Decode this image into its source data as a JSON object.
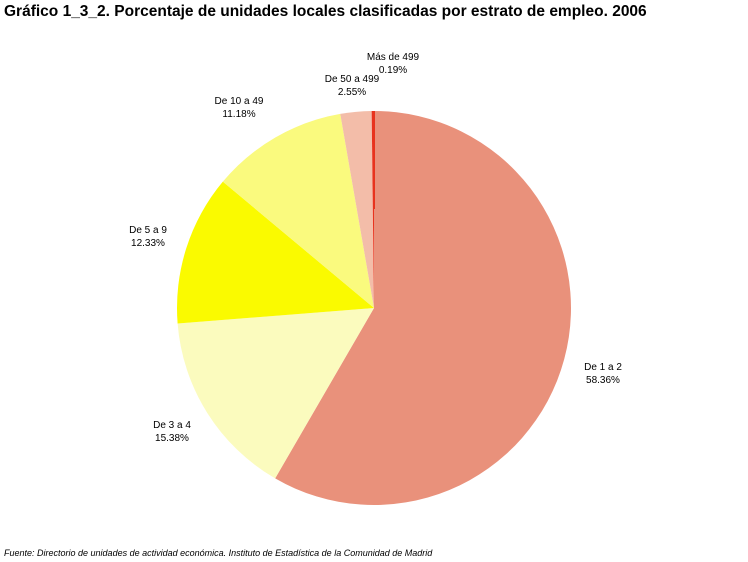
{
  "title": "Gráfico 1_3_2. Porcentaje de unidades locales clasificadas por estrato de empleo. 2006",
  "source": "Fuente: Directorio de unidades de actividad económica. Instituto de Estadística de la Comunidad de Madrid",
  "chart_data": {
    "type": "pie",
    "title": "Gráfico 1_3_2. Porcentaje de unidades locales clasificadas por estrato de empleo. 2006",
    "start": "12 o'clock",
    "direction": "clockwise",
    "slices": [
      {
        "label": "De 1 a 2",
        "value": 58.36,
        "value_label": "58.36%",
        "color": "#E9917B"
      },
      {
        "label": "De 3 a 4",
        "value": 15.38,
        "value_label": "15.38%",
        "color": "#FBFBBE"
      },
      {
        "label": "De 5 a 9",
        "value": 12.33,
        "value_label": "12.33%",
        "color": "#FAFA00"
      },
      {
        "label": "De 10 a 49",
        "value": 11.18,
        "value_label": "11.18%",
        "color": "#FAFA7E"
      },
      {
        "label": "De 50 a 499",
        "value": 2.55,
        "value_label": "2.55%",
        "color": "#F3BDA9"
      },
      {
        "label": "Más de 499",
        "value": 0.19,
        "value_label": "0.19%",
        "color": "#E8331E"
      }
    ]
  }
}
